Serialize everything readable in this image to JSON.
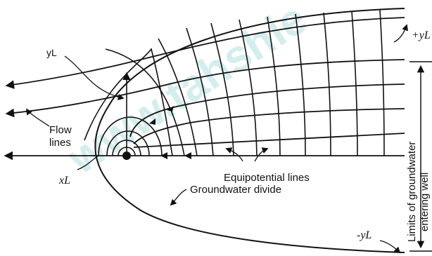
{
  "labels": {
    "y_l": "yL",
    "plus_y_l": "+yL",
    "minus_y_l": "-yL",
    "x_l": "xL",
    "flow_lines_1": "Flow",
    "flow_lines_2": "lines",
    "equipotential": "Equipotential lines",
    "divide": "Groundwater divide",
    "limits_1": "Limits of groundwater",
    "limits_2": "entering well"
  },
  "watermark": "www.tahshie"
}
